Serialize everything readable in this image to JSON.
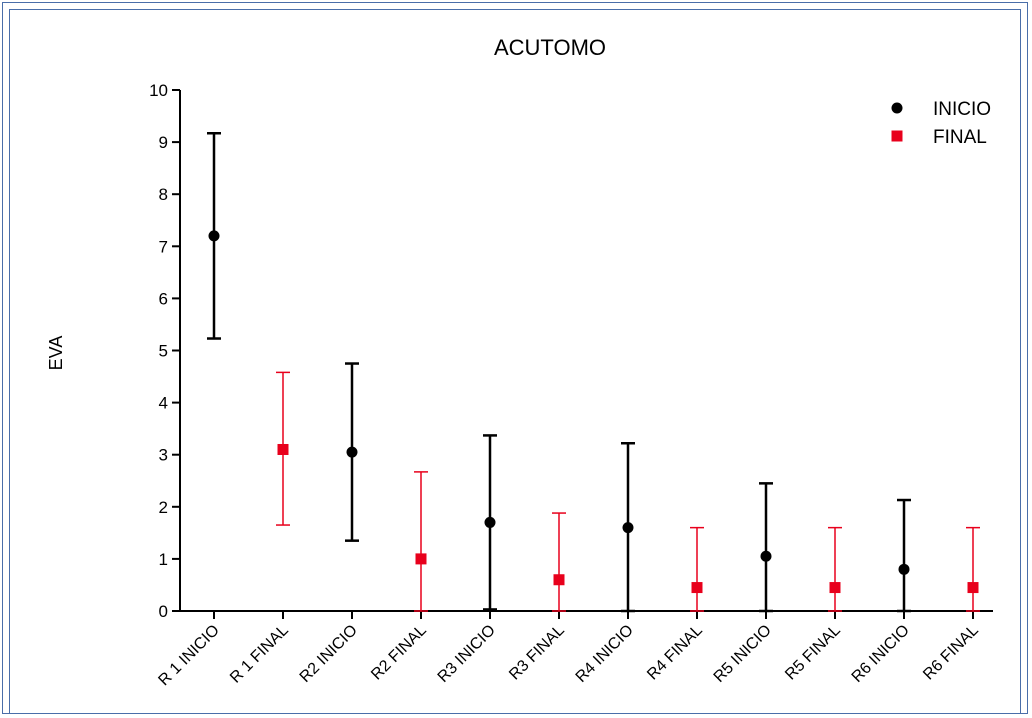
{
  "chart_data": {
    "type": "scatter",
    "title": "ACUTOMO",
    "xlabel": "",
    "ylabel": "EVA",
    "ylim": [
      0,
      10
    ],
    "yticks": [
      0,
      1,
      2,
      3,
      4,
      5,
      6,
      7,
      8,
      9,
      10
    ],
    "grid": false,
    "legend_position": "top-right",
    "categories": [
      "R 1 INICIO",
      "R 1 FINAL",
      "R2 INICIO",
      "R2 FINAL",
      "R3 INICIO",
      "R3 FINAL",
      "R4 INICIO",
      "R4 FINAL",
      "R5 INICIO",
      "R5 FINAL",
      "R6 INICIO",
      "R6 FINAL"
    ],
    "series": [
      {
        "name": "INICIO",
        "color": "#000000",
        "marker": "circle",
        "points": [
          {
            "category": "R 1 INICIO",
            "value": 7.2,
            "low": 5.23,
            "high": 9.17
          },
          {
            "category": "R2 INICIO",
            "value": 3.05,
            "low": 1.35,
            "high": 4.75
          },
          {
            "category": "R3 INICIO",
            "value": 1.7,
            "low": 0.03,
            "high": 3.37
          },
          {
            "category": "R4 INICIO",
            "value": 1.6,
            "low": 0,
            "high": 3.22
          },
          {
            "category": "R5 INICIO",
            "value": 1.05,
            "low": 0,
            "high": 2.45
          },
          {
            "category": "R6 INICIO",
            "value": 0.8,
            "low": 0,
            "high": 2.13
          }
        ]
      },
      {
        "name": "FINAL",
        "color": "#e8001c",
        "marker": "square",
        "points": [
          {
            "category": "R 1 FINAL",
            "value": 3.1,
            "low": 1.65,
            "high": 4.58
          },
          {
            "category": "R2 FINAL",
            "value": 1.0,
            "low": 0,
            "high": 2.67
          },
          {
            "category": "R3 FINAL",
            "value": 0.6,
            "low": 0,
            "high": 1.88
          },
          {
            "category": "R4 FINAL",
            "value": 0.45,
            "low": 0,
            "high": 1.6
          },
          {
            "category": "R5 FINAL",
            "value": 0.45,
            "low": 0,
            "high": 1.6
          },
          {
            "category": "R6 FINAL",
            "value": 0.45,
            "low": 0,
            "high": 1.6
          }
        ]
      }
    ]
  }
}
